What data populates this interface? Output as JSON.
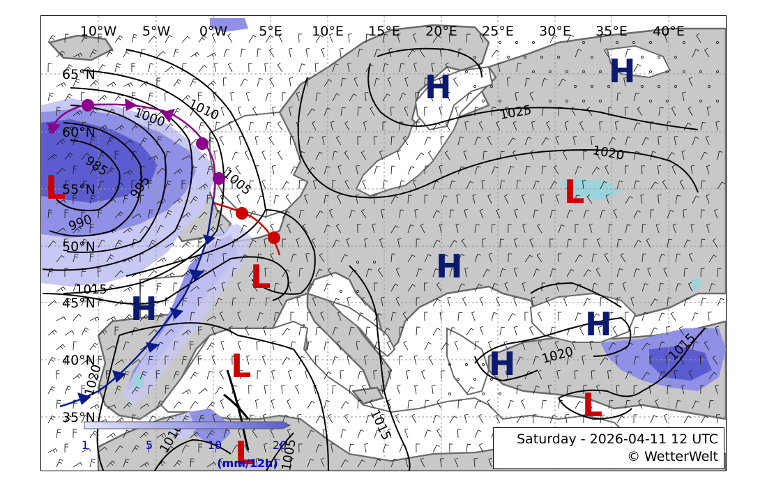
{
  "map": {
    "valid_time": "Saturday - 2026-04-11 12 UTC",
    "copyright": "© WetterWelt",
    "lon_labels": [
      "10°W",
      "5°W",
      "0°W",
      "5°E",
      "10°E",
      "15°E",
      "20°E",
      "25°E",
      "30°E",
      "35°E",
      "40°E"
    ],
    "lat_labels": [
      "65°N",
      "60°N",
      "55°N",
      "50°N",
      "45°N",
      "40°N",
      "35°N"
    ],
    "isobar_labels": [
      "1000",
      "1010",
      "1005",
      "995",
      "985",
      "990",
      "1015",
      "1020",
      "1025",
      "1020",
      "1020",
      "1015",
      "1015",
      "1010",
      "1005"
    ],
    "pressure_centers": [
      {
        "type": "H",
        "color": "#0b1a6e"
      },
      {
        "type": "H",
        "color": "#0b1a6e"
      },
      {
        "type": "H",
        "color": "#0b1a6e"
      },
      {
        "type": "H",
        "color": "#0b1a6e"
      },
      {
        "type": "H",
        "color": "#0b1a6e"
      },
      {
        "type": "H",
        "color": "#0b1a6e"
      },
      {
        "type": "L",
        "color": "#cc0000"
      },
      {
        "type": "L",
        "color": "#cc0000"
      },
      {
        "type": "L",
        "color": "#cc0000"
      },
      {
        "type": "L",
        "color": "#cc0000"
      },
      {
        "type": "L",
        "color": "#cc0000"
      },
      {
        "type": "L",
        "color": "#cc0000"
      }
    ],
    "precip_legend": {
      "ticks": [
        "1",
        "5",
        "10",
        "20"
      ],
      "unit": "(mm/12h)",
      "colors": [
        "#e6e6ff",
        "#b4b4f0",
        "#8a8ae6",
        "#5a5acc"
      ]
    },
    "colors": {
      "land": "#c8c8c8",
      "sea": "#ffffff",
      "coast": "#6a6a6a",
      "isobar": "#000000",
      "cold_front": "#0a1a8a",
      "warm_front": "#cc0000",
      "occlusion": "#8a008a",
      "precip_light": "#c8c8f5",
      "precip_mid": "#9090e6",
      "precip_heavy": "#5c5cd0",
      "showers": "#9bd4dc"
    }
  }
}
